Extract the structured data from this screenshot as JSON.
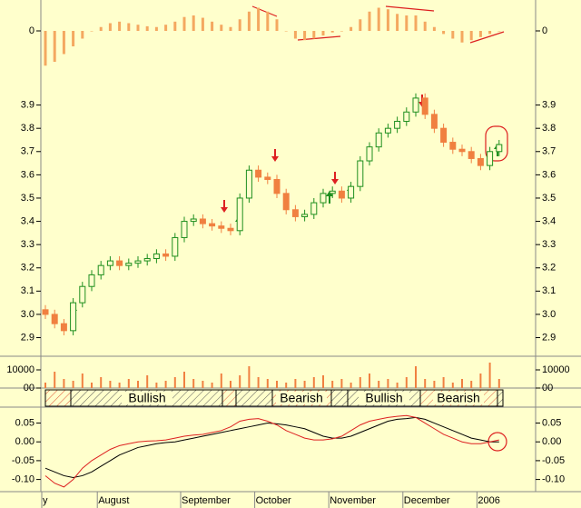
{
  "chart_data": {
    "type": "candlestick",
    "categories": [
      "y",
      null,
      null,
      null,
      null,
      null,
      "August",
      null,
      null,
      null,
      null,
      null,
      null,
      null,
      null,
      "September",
      null,
      null,
      null,
      null,
      null,
      null,
      null,
      "October",
      null,
      null,
      null,
      null,
      null,
      null,
      null,
      "November",
      null,
      null,
      null,
      null,
      null,
      null,
      null,
      "December",
      null,
      null,
      null,
      null,
      null,
      null,
      null,
      "2006",
      null,
      null
    ],
    "open": [
      3.02,
      3.0,
      2.96,
      2.93,
      3.05,
      3.12,
      3.17,
      3.21,
      3.23,
      3.21,
      3.22,
      3.23,
      3.24,
      3.26,
      3.25,
      3.33,
      3.4,
      3.41,
      3.39,
      3.38,
      3.37,
      3.36,
      3.5,
      3.62,
      3.59,
      3.58,
      3.52,
      3.45,
      3.42,
      3.43,
      3.48,
      3.52,
      3.53,
      3.5,
      3.55,
      3.66,
      3.72,
      3.78,
      3.8,
      3.83,
      3.87,
      3.93,
      3.86,
      3.8,
      3.74,
      3.71,
      3.7,
      3.67,
      3.64,
      3.7
    ],
    "high": [
      3.04,
      3.02,
      2.98,
      3.07,
      3.14,
      3.19,
      3.23,
      3.25,
      3.25,
      3.24,
      3.25,
      3.26,
      3.28,
      3.28,
      3.35,
      3.42,
      3.43,
      3.43,
      3.41,
      3.4,
      3.39,
      3.52,
      3.64,
      3.64,
      3.61,
      3.6,
      3.54,
      3.47,
      3.45,
      3.5,
      3.54,
      3.55,
      3.55,
      3.57,
      3.68,
      3.74,
      3.8,
      3.82,
      3.85,
      3.89,
      3.95,
      3.95,
      3.88,
      3.82,
      3.76,
      3.73,
      3.72,
      3.69,
      3.72,
      3.75
    ],
    "low": [
      2.98,
      2.94,
      2.91,
      2.91,
      3.03,
      3.1,
      3.15,
      3.19,
      3.19,
      3.19,
      3.2,
      3.21,
      3.22,
      3.23,
      3.23,
      3.31,
      3.38,
      3.37,
      3.36,
      3.35,
      3.34,
      3.34,
      3.48,
      3.57,
      3.56,
      3.5,
      3.43,
      3.4,
      3.4,
      3.41,
      3.46,
      3.5,
      3.48,
      3.48,
      3.53,
      3.64,
      3.7,
      3.76,
      3.78,
      3.81,
      3.85,
      3.84,
      3.78,
      3.72,
      3.69,
      3.68,
      3.65,
      3.62,
      3.62,
      3.68
    ],
    "close": [
      3.0,
      2.96,
      2.93,
      3.05,
      3.12,
      3.17,
      3.21,
      3.23,
      3.21,
      3.22,
      3.23,
      3.24,
      3.26,
      3.25,
      3.33,
      3.4,
      3.41,
      3.39,
      3.38,
      3.37,
      3.36,
      3.5,
      3.62,
      3.59,
      3.58,
      3.52,
      3.45,
      3.42,
      3.43,
      3.48,
      3.52,
      3.53,
      3.5,
      3.55,
      3.66,
      3.72,
      3.78,
      3.8,
      3.83,
      3.87,
      3.93,
      3.86,
      3.8,
      3.74,
      3.71,
      3.7,
      3.67,
      3.64,
      3.7,
      3.73
    ],
    "up_color": "#1f8f1f",
    "down_color": "#f08040",
    "ylim": [
      2.82,
      4.0
    ],
    "yticks": [
      2.9,
      {
        "value": 3,
        "label": "3.0"
      },
      3.1,
      3.2,
      3.3,
      3.4,
      3.5,
      3.6,
      3.7,
      3.8,
      3.9
    ],
    "volume": {
      "type": "bar",
      "color": "#f08040",
      "ylim": [
        0,
        16000
      ],
      "yticks": [
        10000,
        {
          "value": 0,
          "label": "00"
        }
      ],
      "values": [
        3000,
        9000,
        5000,
        4000,
        8000,
        3000,
        6000,
        4000,
        3000,
        5000,
        4000,
        7000,
        3000,
        4000,
        6000,
        9000,
        5000,
        4000,
        3000,
        8000,
        4000,
        7000,
        12000,
        6000,
        5000,
        4000,
        3000,
        5000,
        4000,
        6000,
        7000,
        4000,
        5000,
        3000,
        6000,
        8000,
        4000,
        5000,
        3000,
        6000,
        12000,
        5000,
        4000,
        6000,
        3000,
        5000,
        4000,
        8000,
        14000,
        5000
      ]
    },
    "momentum": {
      "type": "bar",
      "color": "#f4a860",
      "ylim": [
        -0.06,
        0.04
      ],
      "yticks": [
        0
      ],
      "values": [
        -0.045,
        -0.04,
        -0.03,
        -0.02,
        -0.01,
        0.0,
        0.005,
        0.01,
        0.012,
        0.01,
        0.008,
        0.006,
        0.005,
        0.008,
        0.012,
        0.018,
        0.02,
        0.017,
        0.012,
        0.008,
        0.005,
        0.015,
        0.025,
        0.03,
        0.025,
        0.015,
        0.0,
        -0.01,
        -0.012,
        -0.01,
        -0.006,
        -0.002,
        0.0,
        0.005,
        0.015,
        0.025,
        0.03,
        0.028,
        0.022,
        0.02,
        0.02,
        0.012,
        0.005,
        -0.004,
        -0.01,
        -0.015,
        -0.012,
        -0.008,
        -0.004,
        0.0
      ]
    },
    "regimes": [
      "Bullish",
      "Bearish",
      "Bullish",
      "Bearish"
    ],
    "oscillator": {
      "type": "line",
      "ylim": [
        -0.13,
        0.09
      ],
      "yticks": [
        0.05,
        {
          "value": 0,
          "label": "0.00"
        },
        -0.05,
        {
          "value": -0.1,
          "label": "-0.10"
        }
      ],
      "series": [
        {
          "color": "#000000",
          "values": [
            -0.07,
            -0.08,
            -0.09,
            -0.095,
            -0.09,
            -0.08,
            -0.065,
            -0.05,
            -0.035,
            -0.025,
            -0.015,
            -0.01,
            -0.005,
            -0.002,
            0.0,
            0.005,
            0.01,
            0.015,
            0.02,
            0.025,
            0.03,
            0.035,
            0.04,
            0.045,
            0.05,
            0.048,
            0.045,
            0.04,
            0.035,
            0.025,
            0.015,
            0.01,
            0.01,
            0.015,
            0.025,
            0.035,
            0.045,
            0.055,
            0.06,
            0.062,
            0.065,
            0.06,
            0.05,
            0.04,
            0.03,
            0.02,
            0.01,
            0.005,
            0.0,
            0.0
          ]
        },
        {
          "color": "#dd2020",
          "values": [
            -0.09,
            -0.11,
            -0.12,
            -0.1,
            -0.07,
            -0.05,
            -0.035,
            -0.02,
            -0.01,
            -0.005,
            0.0,
            0.002,
            0.003,
            0.005,
            0.01,
            0.015,
            0.018,
            0.02,
            0.025,
            0.03,
            0.04,
            0.055,
            0.06,
            0.062,
            0.055,
            0.045,
            0.03,
            0.02,
            0.01,
            0.005,
            0.005,
            0.008,
            0.015,
            0.03,
            0.045,
            0.055,
            0.06,
            0.065,
            0.068,
            0.07,
            0.065,
            0.05,
            0.035,
            0.02,
            0.01,
            0.0,
            -0.005,
            -0.005,
            0.0,
            0.005
          ]
        }
      ]
    }
  }
}
